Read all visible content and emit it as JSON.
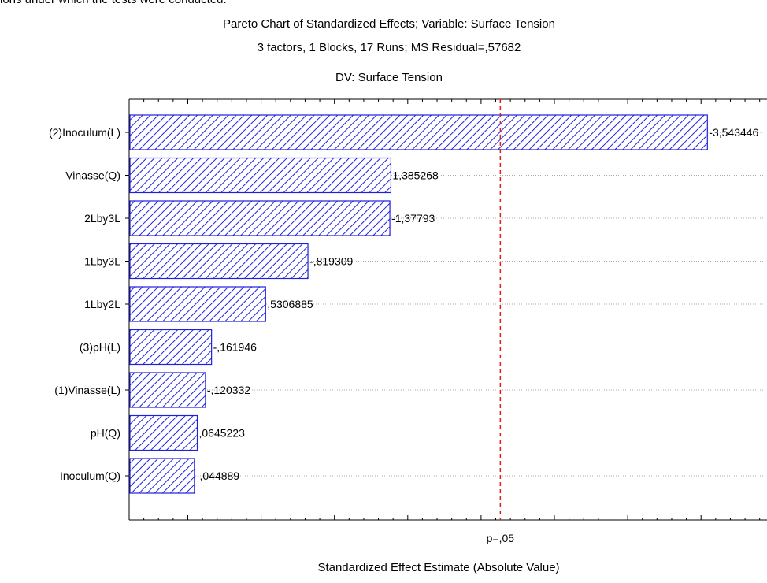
{
  "page": {
    "clipped_caption": "ions under which the tests were conducted."
  },
  "chart_data": {
    "type": "bar",
    "orientation": "horizontal",
    "title": "Pareto Chart of Standardized Effects; Variable: Surface Tension",
    "subtitle": "3 factors, 1 Blocks, 17 Runs; MS Residual=,57682",
    "subtitle2": "DV: Surface Tension",
    "xlabel": "Standardized Effect Estimate (Absolute Value)",
    "ylabel": "",
    "categories": [
      "(2)Inoculum(L)",
      "Vinasse(Q)",
      "2Lby3L",
      "1Lby3L",
      "1Lby2L",
      "(3)pH(L)",
      "(1)Vinasse(L)",
      "pH(Q)",
      "Inoculum(Q)"
    ],
    "values": [
      3.543446,
      1.385268,
      1.37793,
      0.819309,
      0.5306885,
      0.161946,
      0.120332,
      0.0645223,
      0.044889
    ],
    "value_labels": [
      "-3,543446",
      "1,385268",
      "-1,37793",
      "-,819309",
      ",5306885",
      "-,161946",
      "-,120332",
      ",0645223",
      "-,044889"
    ],
    "xlim": [
      -0.4,
      3.95
    ],
    "reference_line": {
      "value": 2.1314,
      "label": "p=,05",
      "color": "#e02020",
      "style": "dashed"
    },
    "bar_color": "#2020e0",
    "grid": true
  }
}
